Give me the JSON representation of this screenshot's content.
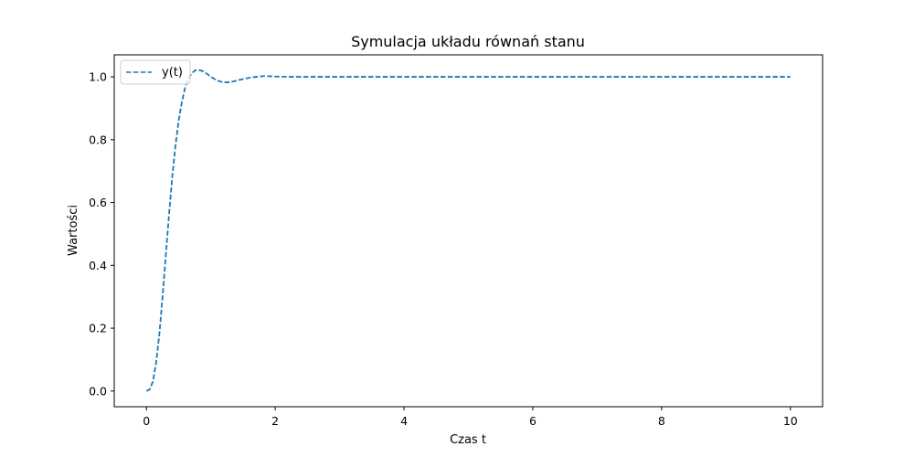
{
  "chart_data": {
    "type": "line",
    "title": "Symulacja układu równań stanu",
    "xlabel": "Czas t",
    "ylabel": "Wartości",
    "xlim": [
      -0.5,
      10.5
    ],
    "ylim": [
      -0.05,
      1.07
    ],
    "x_ticks": [
      0,
      2,
      4,
      6,
      8,
      10
    ],
    "y_ticks": [
      0.0,
      0.2,
      0.4,
      0.6,
      0.8,
      1.0
    ],
    "x_tick_labels": [
      "0",
      "2",
      "4",
      "6",
      "8",
      "10"
    ],
    "y_tick_labels": [
      "0.0",
      "0.2",
      "0.4",
      "0.6",
      "0.8",
      "1.0"
    ],
    "grid": false,
    "legend": {
      "placement": "upper-left"
    },
    "series": [
      {
        "name": "y(t)",
        "color": "#1f77b4",
        "style": "dashed",
        "x": [
          0,
          0.05,
          0.1,
          0.15,
          0.2,
          0.25,
          0.3,
          0.35,
          0.4,
          0.45,
          0.5,
          0.55,
          0.6,
          0.65,
          0.7,
          0.75,
          0.8,
          0.85,
          0.9,
          0.95,
          1.0,
          1.1,
          1.2,
          1.3,
          1.4,
          1.5,
          1.6,
          1.7,
          1.8,
          1.9,
          2.0,
          2.2,
          2.5,
          3,
          4,
          5,
          6,
          7,
          8,
          9,
          10
        ],
        "y": [
          0.0,
          0.005,
          0.03,
          0.09,
          0.18,
          0.3,
          0.43,
          0.56,
          0.68,
          0.78,
          0.86,
          0.92,
          0.965,
          0.995,
          1.01,
          1.02,
          1.022,
          1.02,
          1.015,
          1.008,
          1.0,
          0.988,
          0.982,
          0.983,
          0.988,
          0.993,
          0.997,
          1.0,
          1.002,
          1.002,
          1.001,
          1.0,
          1.0,
          1.0,
          1.0,
          1.0,
          1.0,
          1.0,
          1.0,
          1.0,
          1.0
        ]
      }
    ]
  }
}
